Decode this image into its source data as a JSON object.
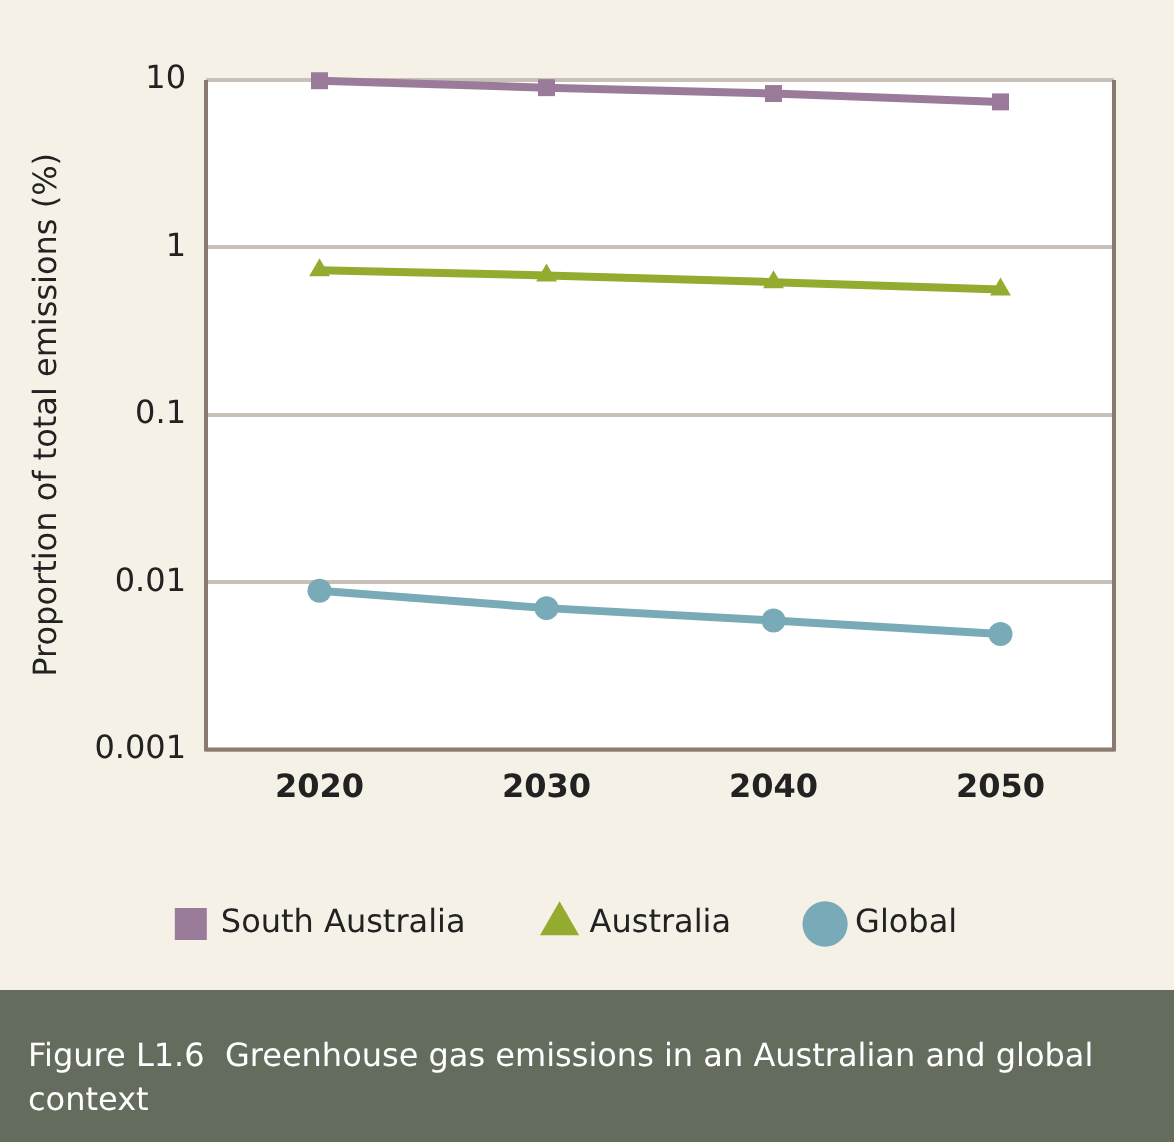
{
  "chart_data": {
    "type": "line",
    "title": "Figure L1.6  Greenhouse gas emissions in an Australian and global context",
    "ylabel": "Proportion of total emissions (%)",
    "categories": [
      "2020",
      "2030",
      "2040",
      "2050"
    ],
    "series": [
      {
        "name": "South Australia",
        "color": "#9b7b9a",
        "marker": "square",
        "values": [
          9.9,
          9.0,
          8.3,
          7.4
        ]
      },
      {
        "name": "Australia",
        "color": "#93ab2f",
        "marker": "triangle",
        "values": [
          0.73,
          0.68,
          0.62,
          0.56
        ]
      },
      {
        "name": "Global",
        "color": "#78aab8",
        "marker": "circle",
        "values": [
          0.0089,
          0.007,
          0.0059,
          0.0049
        ]
      }
    ],
    "log": "y",
    "ylim": [
      0.001,
      10
    ],
    "yticks": [
      0.001,
      0.01,
      0.1,
      1,
      10
    ],
    "grid": "y",
    "legend": "bottom"
  }
}
